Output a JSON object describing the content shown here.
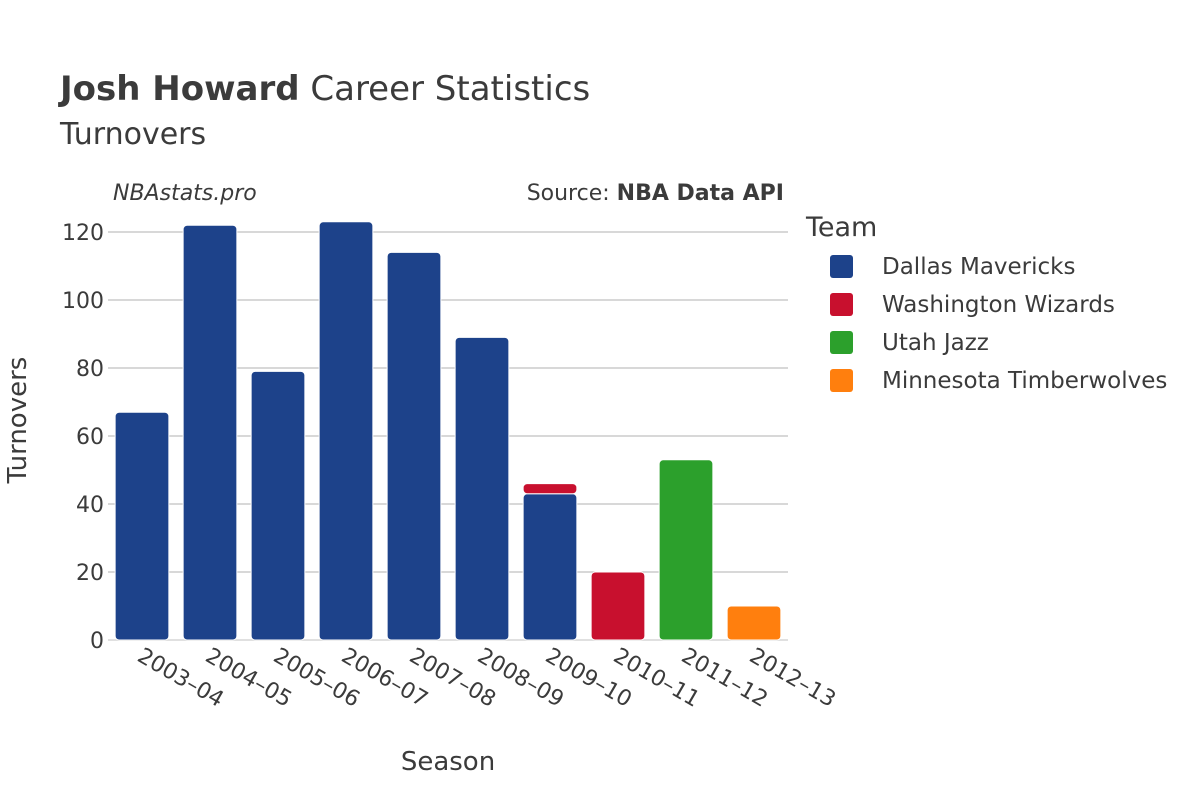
{
  "header": {
    "title_name": "Josh Howard",
    "title_rest": " Career Statistics",
    "subtitle": "Turnovers"
  },
  "watermark": {
    "site": "NBAstats.pro",
    "source_prefix": "Source: ",
    "source_name": "NBA Data API"
  },
  "colors": {
    "Dallas Mavericks": "#1d428a",
    "Washington Wizards": "#c8102e",
    "Utah Jazz": "#2ca02c",
    "Minnesota Timberwolves": "#ff7f0e",
    "grid": "#b0b0b0",
    "text": "#3b3b3b"
  },
  "legend": {
    "title": "Team",
    "items": [
      "Dallas Mavericks",
      "Washington Wizards",
      "Utah Jazz",
      "Minnesota Timberwolves"
    ]
  },
  "chart_data": {
    "type": "bar",
    "stacked": true,
    "xlabel": "Season",
    "ylabel": "Turnovers",
    "ylim": [
      0,
      125
    ],
    "yticks": [
      0,
      20,
      40,
      60,
      80,
      100,
      120
    ],
    "grid": true,
    "legend_position": "right",
    "categories": [
      "2003–04",
      "2004–05",
      "2005–06",
      "2006–07",
      "2007–08",
      "2008–09",
      "2009–10",
      "2010–11",
      "2011–12",
      "2012–13"
    ],
    "series": [
      {
        "name": "Dallas Mavericks",
        "values": [
          67,
          122,
          79,
          123,
          114,
          89,
          43,
          0,
          0,
          0
        ]
      },
      {
        "name": "Washington Wizards",
        "values": [
          0,
          0,
          0,
          0,
          0,
          0,
          3,
          20,
          0,
          0
        ]
      },
      {
        "name": "Utah Jazz",
        "values": [
          0,
          0,
          0,
          0,
          0,
          0,
          0,
          0,
          53,
          0
        ]
      },
      {
        "name": "Minnesota Timberwolves",
        "values": [
          0,
          0,
          0,
          0,
          0,
          0,
          0,
          0,
          0,
          10
        ]
      }
    ]
  }
}
